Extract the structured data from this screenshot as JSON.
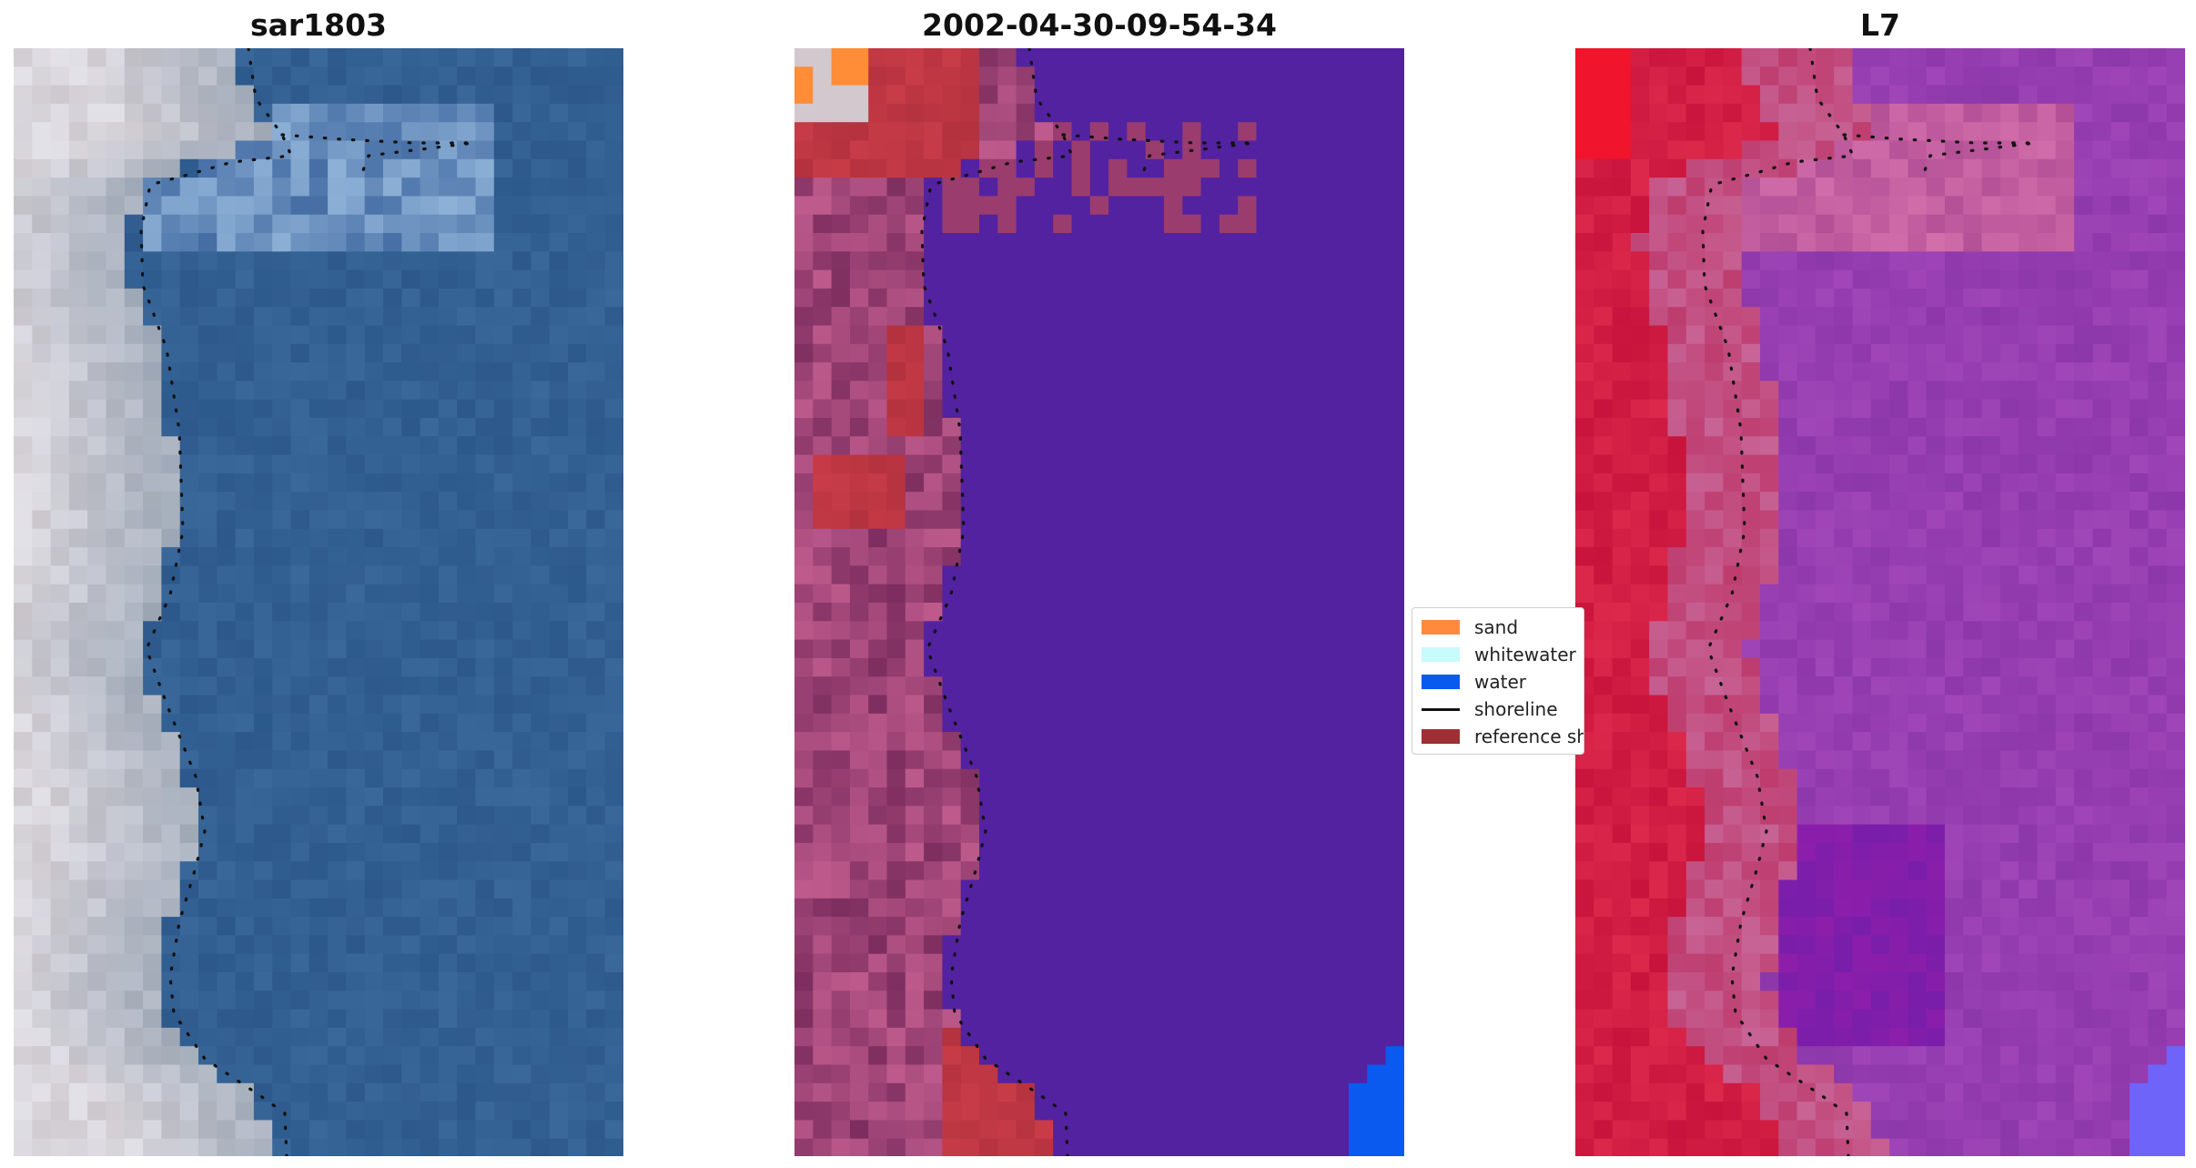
{
  "panels": [
    {
      "title": "sar1803",
      "kind": "rgb"
    },
    {
      "title": "2002-04-30-09-54-34",
      "kind": "classified"
    },
    {
      "title": "L7",
      "kind": "index"
    }
  ],
  "legend": {
    "items": [
      {
        "label": "sand",
        "color": "#ff8a3d",
        "type": "patch"
      },
      {
        "label": "whitewater",
        "color": "#c8fbfb",
        "type": "patch"
      },
      {
        "label": "water",
        "color": "#0a5af0",
        "type": "patch"
      },
      {
        "label": "shoreline",
        "color": "#111111",
        "type": "line"
      },
      {
        "label": "reference shoreline",
        "color": "#9e2f35",
        "type": "patch"
      }
    ]
  },
  "colors": {
    "water_rgb": "#2f5e91",
    "land_rgb": "#d6d2d6",
    "class_water": "#5322a0",
    "class_land": "#a04a7c",
    "class_reference": "#b5363f",
    "index_land": "#c81e46",
    "index_water": "#8f38a8"
  }
}
